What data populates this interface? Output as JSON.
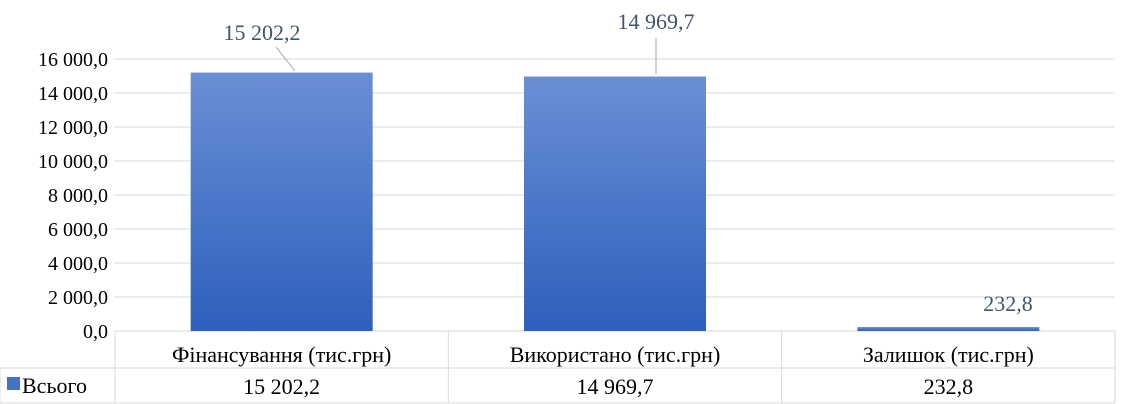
{
  "chart_data": {
    "type": "bar",
    "categories": [
      "Фінансування (тис.грн)",
      "Використано (тис.грн)",
      "Залишок (тис.грн)"
    ],
    "series": [
      {
        "name": "Всього",
        "values": [
          15202.2,
          14969.7,
          232.8
        ],
        "color": "#4472c4"
      }
    ],
    "data_labels": [
      "15 202,2",
      "14 969,7",
      "232,8"
    ],
    "table_values": [
      "15 202,2",
      "14 969,7",
      "232,8"
    ],
    "ylim": [
      0,
      16000
    ],
    "y_ticks": [
      "0,0",
      "2 000,0",
      "4 000,0",
      "6 000,0",
      "8 000,0",
      "10 000,0",
      "12 000,0",
      "14 000,0",
      "16 000,0"
    ],
    "gridlines": true,
    "data_table": true,
    "label_color": "#44546a",
    "grid_color": "#d9d9d9"
  }
}
